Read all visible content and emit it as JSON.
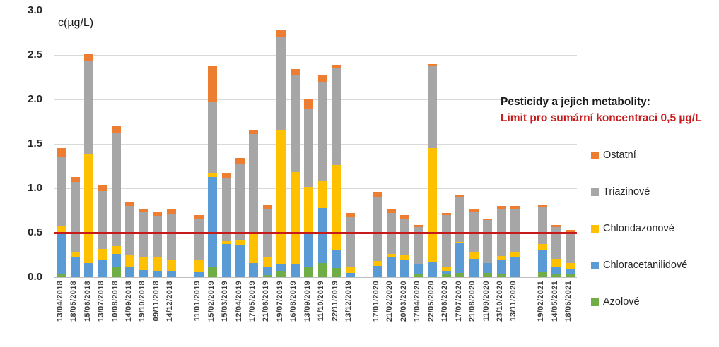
{
  "annotation": {
    "line1": "Pesticidy a jejich metabolity:",
    "line2": "Limit pro sumární koncentraci 0,5 µg/L"
  },
  "colors": {
    "azolove": "#70ad47",
    "chloracetanilidove": "#5b9bd5",
    "chloridazonove": "#ffc000",
    "triazinove": "#a6a6a6",
    "ostatni": "#ed7d31",
    "limit_red": "#c61a1b",
    "gridline": "#d9d9d9"
  },
  "legend": [
    {
      "label": "Ostatní",
      "color": "#ed7d31"
    },
    {
      "label": "Triazinové",
      "color": "#a6a6a6"
    },
    {
      "label": "Chloridazonové",
      "color": "#ffc000"
    },
    {
      "label": "Chloracetanilidové",
      "color": "#5b9bd5"
    },
    {
      "label": "Azolové",
      "color": "#70ad47"
    }
  ],
  "chart_data": {
    "type": "bar",
    "subtype": "stacked",
    "ylabel": "c(µg/L)",
    "ylim": [
      0,
      3.0
    ],
    "yticks": [
      "0.0",
      "0.5",
      "1.0",
      "1.5",
      "2.0",
      "2.5",
      "3.0"
    ],
    "grid": true,
    "legend_position": "right",
    "limit_line": {
      "value": 0.5,
      "label": "Limit pro sumární koncentraci 0,5 µg/L"
    },
    "series_bottom_to_top": [
      "Azolové",
      "Chloracetanilidové",
      "Chloridazonové",
      "Triazinové",
      "Ostatní"
    ],
    "gap_after_dates": [
      "14/12/2018",
      "13/12/2019",
      "13/11/2020"
    ],
    "bars": [
      {
        "date": "13/04/2018",
        "values": [
          0.03,
          0.48,
          0.06,
          0.79,
          0.09
        ]
      },
      {
        "date": "18/05/2018",
        "values": [
          0.0,
          0.22,
          0.06,
          0.79,
          0.06
        ]
      },
      {
        "date": "15/06/2018",
        "values": [
          0.0,
          0.16,
          1.22,
          1.05,
          0.09
        ]
      },
      {
        "date": "13/07/2018",
        "values": [
          0.0,
          0.2,
          0.12,
          0.65,
          0.07
        ]
      },
      {
        "date": "10/08/2018",
        "values": [
          0.12,
          0.14,
          0.09,
          1.27,
          0.09
        ]
      },
      {
        "date": "14/09/2018",
        "values": [
          0.0,
          0.11,
          0.14,
          0.55,
          0.05
        ]
      },
      {
        "date": "19/10/2018",
        "values": [
          0.0,
          0.08,
          0.14,
          0.51,
          0.04
        ]
      },
      {
        "date": "09/11/2018",
        "values": [
          0.0,
          0.07,
          0.16,
          0.46,
          0.04
        ]
      },
      {
        "date": "14/12/2018",
        "values": [
          0.0,
          0.07,
          0.12,
          0.52,
          0.05
        ]
      },
      {
        "date": "11/01/2019",
        "values": [
          0.0,
          0.06,
          0.14,
          0.46,
          0.04
        ]
      },
      {
        "date": "15/02/2019",
        "values": [
          0.11,
          1.02,
          0.04,
          0.81,
          0.4
        ]
      },
      {
        "date": "15/03/2019",
        "values": [
          0.0,
          0.37,
          0.04,
          0.7,
          0.06
        ]
      },
      {
        "date": "12/04/2019",
        "values": [
          0.0,
          0.36,
          0.06,
          0.85,
          0.07
        ]
      },
      {
        "date": "17/05/2019",
        "values": [
          0.0,
          0.16,
          0.33,
          1.12,
          0.05
        ]
      },
      {
        "date": "21/06/2019",
        "values": [
          0.02,
          0.1,
          0.1,
          0.54,
          0.06
        ]
      },
      {
        "date": "19/07/2019",
        "values": [
          0.07,
          0.07,
          1.52,
          1.04,
          0.08
        ]
      },
      {
        "date": "16/08/2019",
        "values": [
          0.0,
          0.15,
          1.03,
          1.09,
          0.07
        ]
      },
      {
        "date": "13/09/2019",
        "values": [
          0.12,
          0.37,
          0.53,
          0.88,
          0.1
        ]
      },
      {
        "date": "11/10/2019",
        "values": [
          0.16,
          0.62,
          0.3,
          1.12,
          0.08
        ]
      },
      {
        "date": "22/11/2019",
        "values": [
          0.1,
          0.21,
          0.95,
          1.09,
          0.04
        ]
      },
      {
        "date": "13/12/2019",
        "values": [
          0.0,
          0.05,
          0.06,
          0.57,
          0.04
        ]
      },
      {
        "date": "17/01/2020",
        "values": [
          0.0,
          0.13,
          0.05,
          0.72,
          0.06
        ]
      },
      {
        "date": "21/02/2020",
        "values": [
          0.0,
          0.22,
          0.04,
          0.46,
          0.05
        ]
      },
      {
        "date": "20/03/2020",
        "values": [
          0.0,
          0.2,
          0.05,
          0.41,
          0.04
        ]
      },
      {
        "date": "17/04/2020",
        "values": [
          0.04,
          0.1,
          0.0,
          0.42,
          0.03
        ]
      },
      {
        "date": "22/05/2020",
        "values": [
          0.0,
          0.17,
          1.28,
          0.92,
          0.03
        ]
      },
      {
        "date": "12/06/2020",
        "values": [
          0.04,
          0.03,
          0.04,
          0.59,
          0.02
        ]
      },
      {
        "date": "17/07/2020",
        "values": [
          0.05,
          0.33,
          0.02,
          0.5,
          0.02
        ]
      },
      {
        "date": "21/08/2020",
        "values": [
          0.0,
          0.21,
          0.07,
          0.46,
          0.03
        ]
      },
      {
        "date": "11/09/2020",
        "values": [
          0.05,
          0.11,
          0.0,
          0.48,
          0.02
        ]
      },
      {
        "date": "23/10/2020",
        "values": [
          0.04,
          0.15,
          0.05,
          0.53,
          0.03
        ]
      },
      {
        "date": "13/11/2020",
        "values": [
          0.0,
          0.22,
          0.06,
          0.49,
          0.03
        ]
      },
      {
        "date": "19/02/2021",
        "values": [
          0.06,
          0.24,
          0.07,
          0.42,
          0.03
        ]
      },
      {
        "date": "14/05/2021",
        "values": [
          0.04,
          0.08,
          0.09,
          0.35,
          0.03
        ]
      },
      {
        "date": "18/06/2021",
        "values": [
          0.04,
          0.05,
          0.07,
          0.35,
          0.02
        ]
      }
    ]
  }
}
